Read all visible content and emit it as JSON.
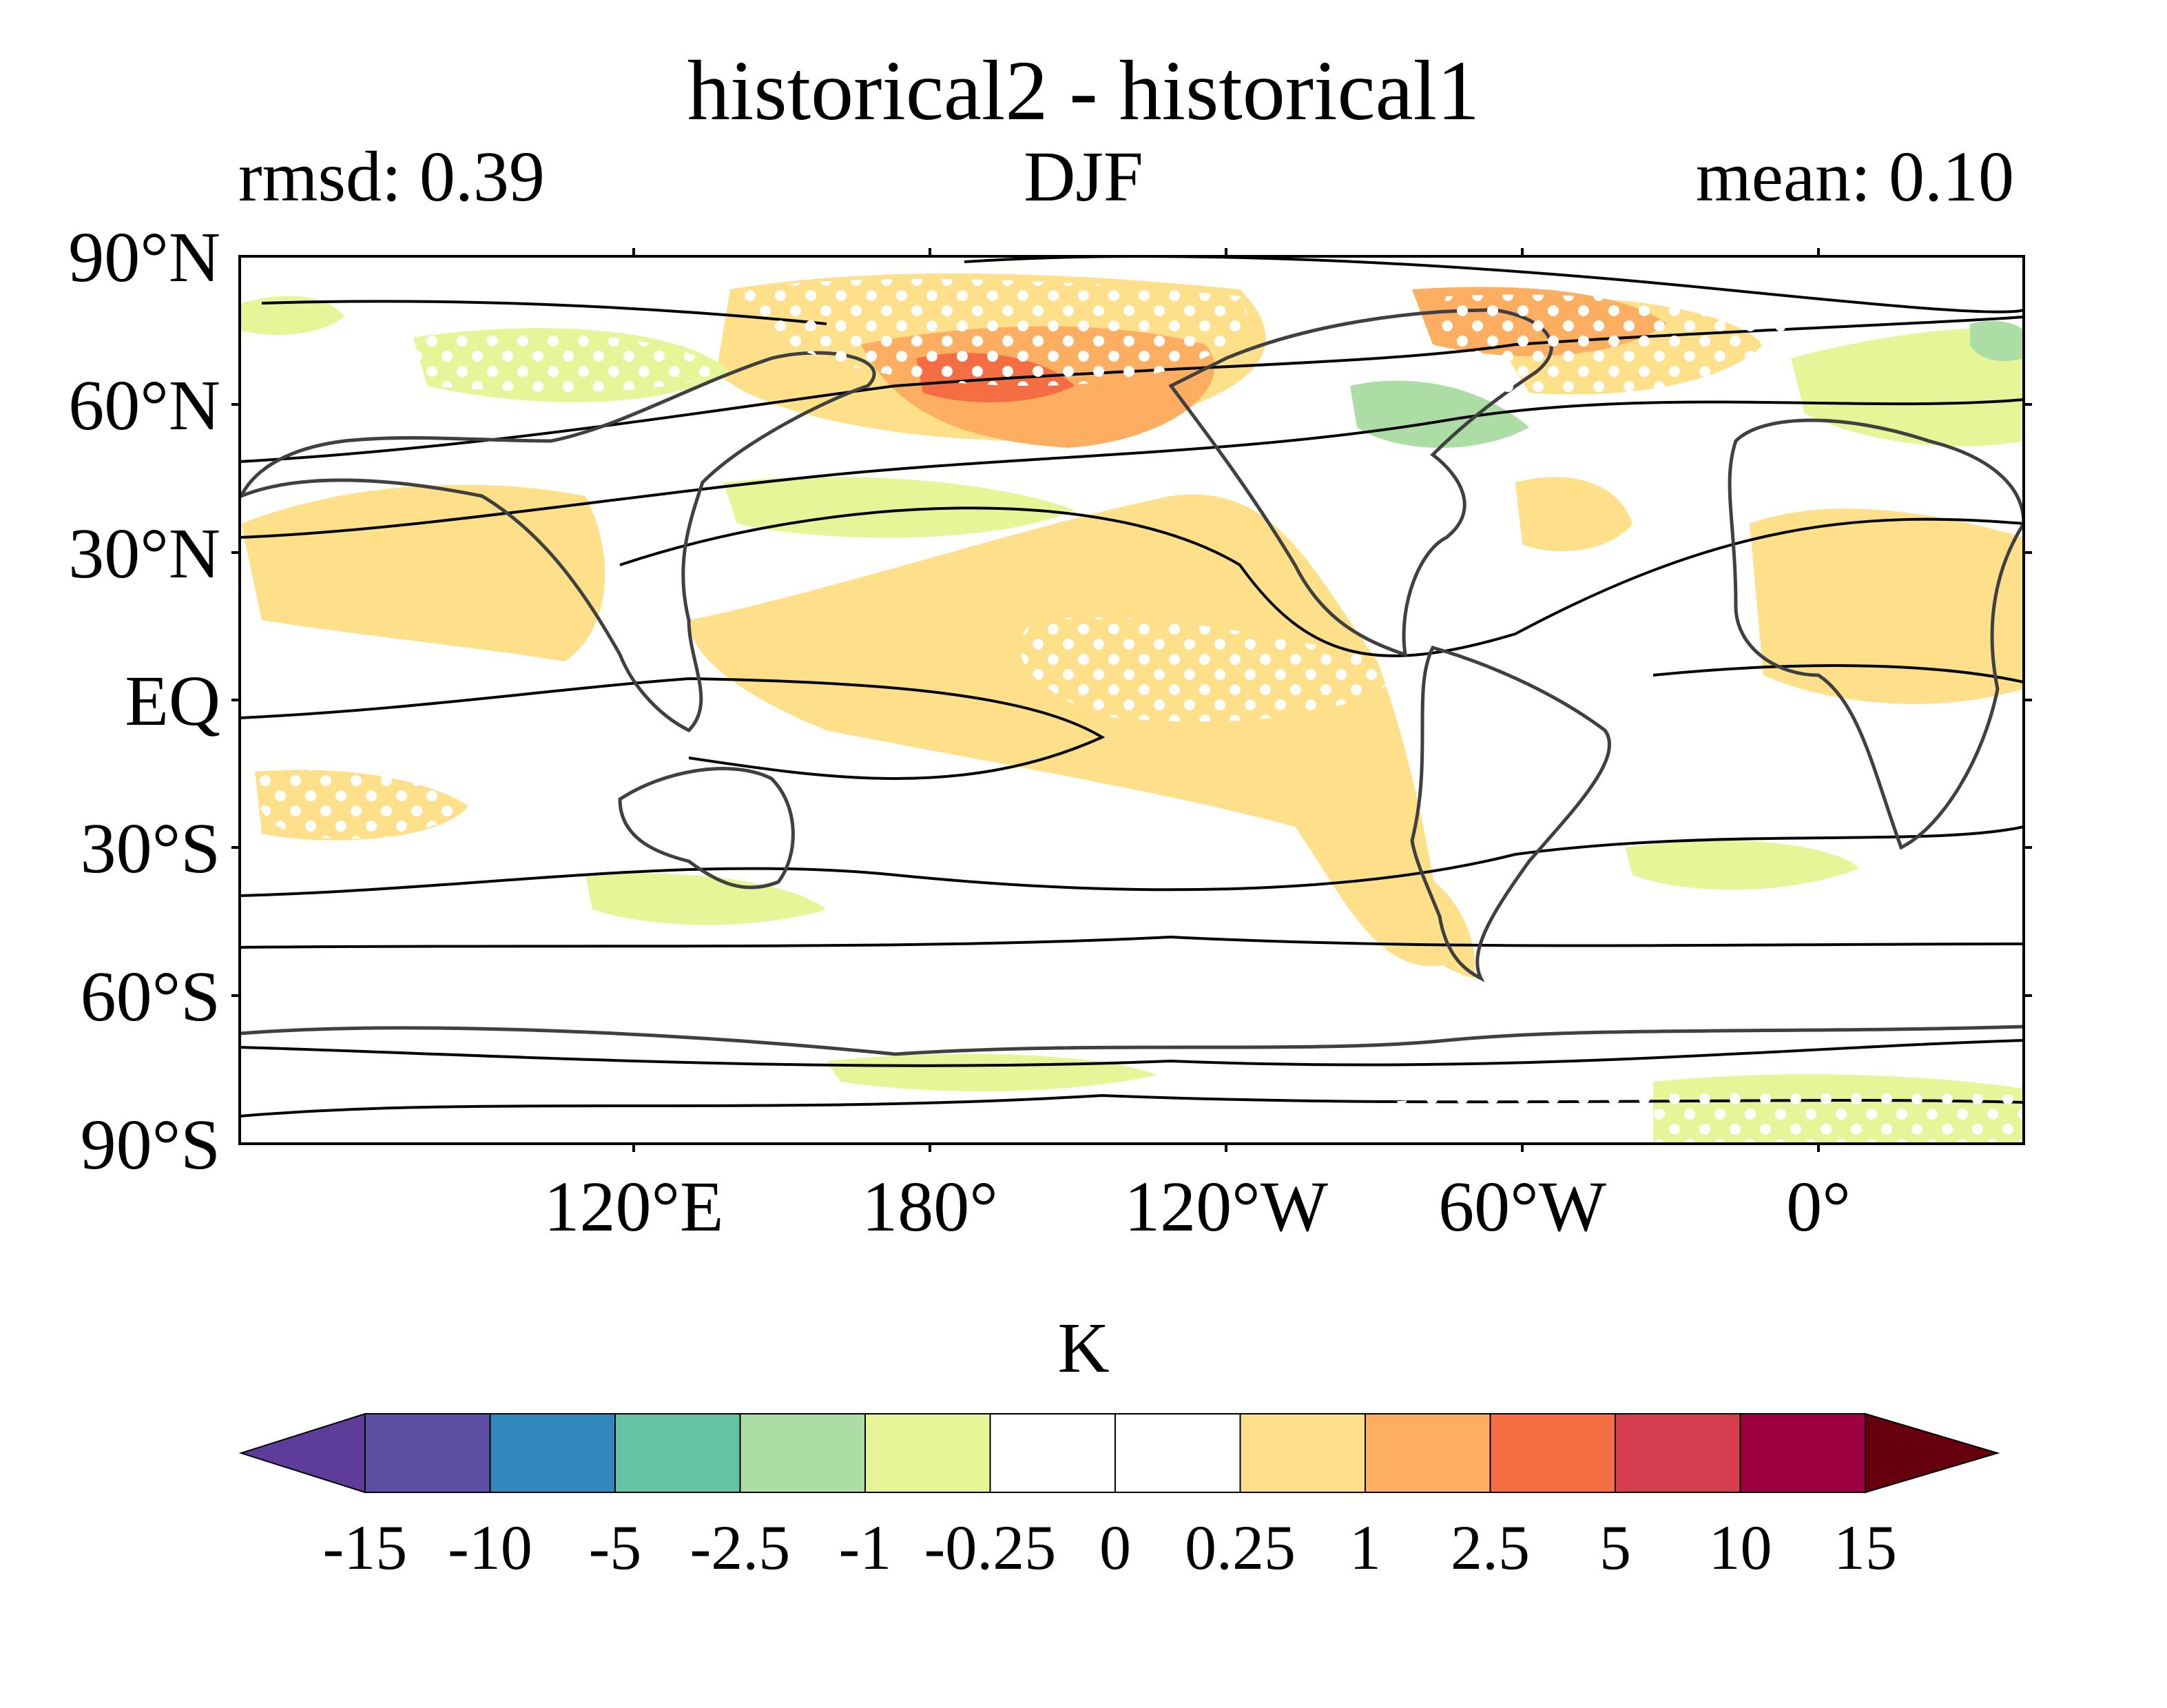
{
  "title": "historical2 - historical1",
  "stats": {
    "rmsd": "rmsd: 0.39",
    "season": "DJF",
    "mean": "mean: 0.10"
  },
  "axes": {
    "lat_labels": [
      "90°N",
      "60°N",
      "30°N",
      "EQ",
      "30°S",
      "60°S",
      "90°S"
    ],
    "lon_labels": [
      "120°E",
      "180°",
      "120°W",
      "60°W",
      "0°"
    ]
  },
  "colorbar": {
    "unit": "K",
    "ticks": [
      "-15",
      "-10",
      "-5",
      "-2.5",
      "-1",
      "-0.25",
      "0",
      "0.25",
      "1",
      "2.5",
      "5",
      "10",
      "15"
    ],
    "under_color": "#5e3c99",
    "over_color": "#67000d",
    "colors": [
      "#5e4fa2",
      "#3288bd",
      "#66c2a5",
      "#abdda4",
      "#e6f598",
      "#ffffff",
      "#ffffff",
      "#fee08b",
      "#fdae61",
      "#f46d43",
      "#d53e4f",
      "#9e0142"
    ]
  },
  "legend_colors": {
    "warm_weak": "#fee08b",
    "warm_mid": "#fdae61",
    "warm_strong": "#f46d43",
    "cool_weak": "#e6f598",
    "cool_mid": "#abdda4",
    "coast": "#404040",
    "contour": "#000000"
  },
  "chart_data": {
    "type": "map",
    "title": "historical2 - historical1",
    "variable_unit": "K",
    "season": "DJF",
    "rmsd": 0.39,
    "mean": 0.1,
    "lat_range": [
      -90,
      90
    ],
    "lon_ticks": [
      "120°E",
      "180°",
      "120°W",
      "60°W",
      "0°"
    ],
    "lat_ticks": [
      "90°N",
      "60°N",
      "30°N",
      "EQ",
      "30°S",
      "60°S",
      "90°S"
    ],
    "levels": [
      -15,
      -10,
      -5,
      -2.5,
      -1,
      -0.25,
      0,
      0.25,
      1,
      2.5,
      5,
      10,
      15
    ],
    "stippling": "white dots mark significance"
  }
}
